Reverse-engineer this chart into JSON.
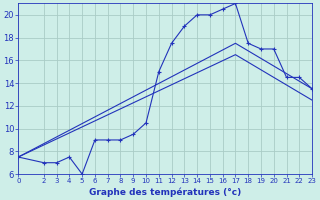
{
  "title": "Graphe des températures (°c)",
  "background_color": "#ceeee8",
  "grid_color": "#aaccc6",
  "line_color": "#2233bb",
  "xlim": [
    0,
    23
  ],
  "ylim": [
    6,
    21
  ],
  "xticks": [
    0,
    2,
    3,
    4,
    5,
    6,
    7,
    8,
    9,
    10,
    11,
    12,
    13,
    14,
    15,
    16,
    17,
    18,
    19,
    20,
    21,
    22,
    23
  ],
  "yticks": [
    6,
    8,
    10,
    12,
    14,
    16,
    18,
    20
  ],
  "series1_x": [
    0,
    2,
    3,
    4,
    5,
    6,
    7,
    8,
    9,
    10,
    11,
    12,
    13,
    14,
    15,
    16,
    17,
    18,
    19,
    20,
    21,
    22,
    23
  ],
  "series1_y": [
    7.5,
    7.0,
    7.0,
    7.5,
    6.0,
    9.0,
    9.0,
    9.0,
    9.5,
    10.5,
    15.0,
    17.5,
    19.0,
    20.0,
    20.0,
    20.5,
    21.0,
    17.5,
    17.0,
    17.0,
    14.5,
    14.5,
    13.5
  ],
  "series2_x": [
    0,
    17,
    23
  ],
  "series2_y": [
    7.5,
    17.5,
    13.5
  ],
  "series3_x": [
    0,
    17,
    23
  ],
  "series3_y": [
    7.5,
    16.5,
    12.5
  ],
  "figsize": [
    3.2,
    2.0
  ],
  "dpi": 100
}
